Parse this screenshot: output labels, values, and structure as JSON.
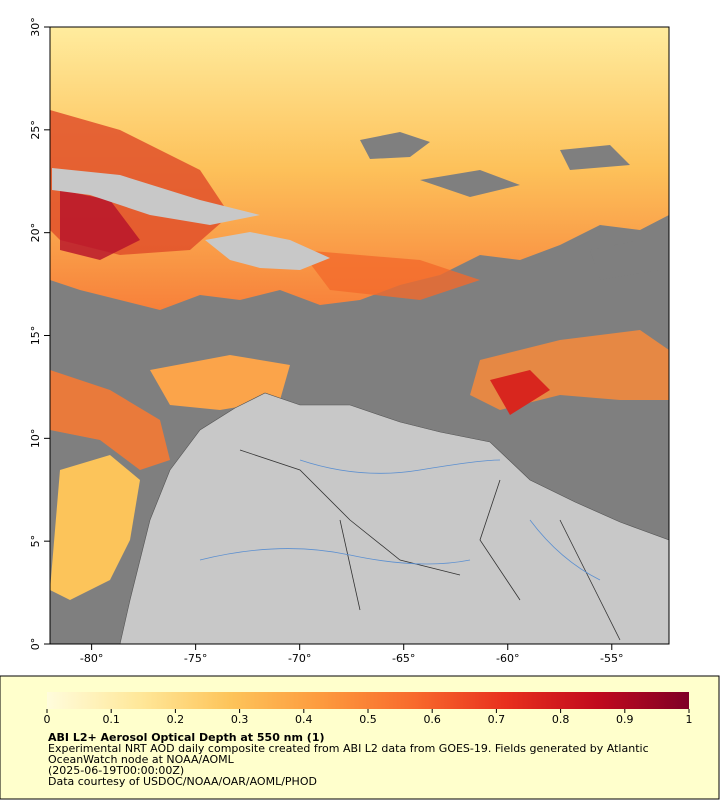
{
  "chart_data": {
    "type": "map",
    "title": "ABI L2+ Aerosol Optical Depth at 550 nm (1)",
    "description": "Experimental NRT AOD daily composite created from ABI L2 data from GOES-19. Fields generated by Atlantic OceanWatch node at NOAA/AOML",
    "date": "(2025-06-19T00:00:00Z)",
    "credit": "Data courtesy of USDOC/NOAA/OAR/AOML/PHOD",
    "xlim": [
      -82,
      -52.25
    ],
    "ylim": [
      0,
      30
    ],
    "xticks": [
      {
        "value": -80,
        "label": "-80°"
      },
      {
        "value": -75,
        "label": "-75°"
      },
      {
        "value": -70,
        "label": "-70°"
      },
      {
        "value": -65,
        "label": "-65°"
      },
      {
        "value": -60,
        "label": "-60°"
      },
      {
        "value": -55,
        "label": "-55°"
      }
    ],
    "yticks": [
      {
        "value": 0,
        "label": "0°"
      },
      {
        "value": 5,
        "label": "5°"
      },
      {
        "value": 10,
        "label": "10°"
      },
      {
        "value": 15,
        "label": "15°"
      },
      {
        "value": 20,
        "label": "20°"
      },
      {
        "value": 25,
        "label": "25°"
      },
      {
        "value": 30,
        "label": "30°"
      }
    ],
    "colorbar": {
      "lim": [
        0,
        1
      ],
      "ticks": [
        0,
        0.1,
        0.2,
        0.3,
        0.4,
        0.5,
        0.6,
        0.7,
        0.8,
        0.9,
        1
      ],
      "colormap": [
        "#fffcdc",
        "#ffe89a",
        "#fdc45a",
        "#fd9a3e",
        "#f86a2c",
        "#e8301e",
        "#c10a1e",
        "#7f0026"
      ]
    }
  }
}
